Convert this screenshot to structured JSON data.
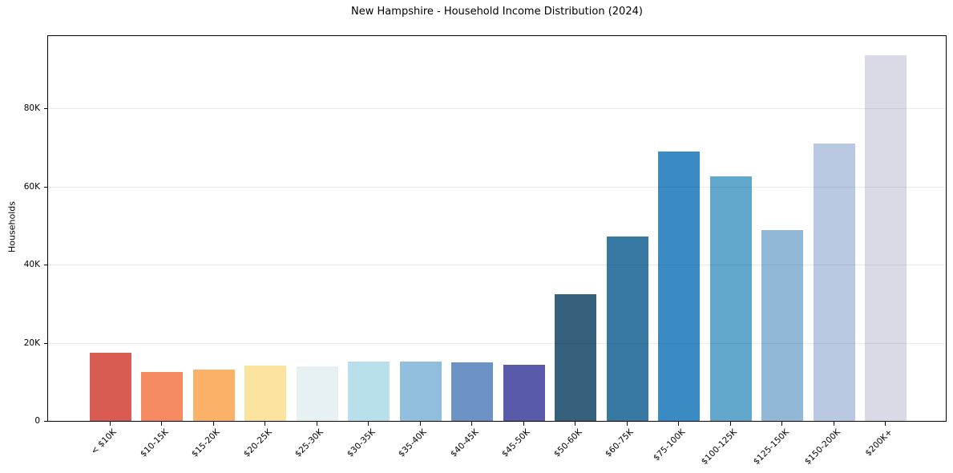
{
  "figure": {
    "title": "New Hampshire - Household Income Distribution (2024)"
  },
  "chart_data": {
    "type": "bar",
    "title": "New Hampshire - Household Income Distribution (2024)",
    "xlabel": "",
    "ylabel": "Households",
    "categories": [
      "< $10K",
      "$10-15K",
      "$15-20K",
      "$20-25K",
      "$25-30K",
      "$30-35K",
      "$35-40K",
      "$40-45K",
      "$45-50K",
      "$50-60K",
      "$60-75K",
      "$75-100K",
      "$100-125K",
      "$125-150K",
      "$150-200K",
      "$200K+"
    ],
    "values": [
      17400,
      12500,
      13200,
      14100,
      14000,
      15100,
      15200,
      15000,
      14300,
      32400,
      47100,
      68900,
      62600,
      48800,
      71000,
      93600
    ],
    "bar_colors": [
      "#d85c52",
      "#f58960",
      "#fbb168",
      "#fce49e",
      "#e7f1f3",
      "#b9dfeb",
      "#92bedd",
      "#6d92c5",
      "#5a5aaa",
      "#36617c",
      "#3779a3",
      "#3a8bc4",
      "#61a8cc",
      "#91b8d7",
      "#b9c9e2",
      "#d9dae6"
    ],
    "ylim": [
      0,
      98500
    ],
    "yticks": [
      {
        "value": 0,
        "label": "0"
      },
      {
        "value": 20000,
        "label": "20K"
      },
      {
        "value": 40000,
        "label": "40K"
      },
      {
        "value": 60000,
        "label": "60K"
      },
      {
        "value": 80000,
        "label": "80K"
      }
    ],
    "grid": "horizontal",
    "legend_position": "none",
    "x_tick_rotation_deg": 45
  },
  "colors": {
    "background": "#ffffff",
    "plot_border": "#000000",
    "gridline": "#e9e9e9",
    "text": "#000000"
  }
}
